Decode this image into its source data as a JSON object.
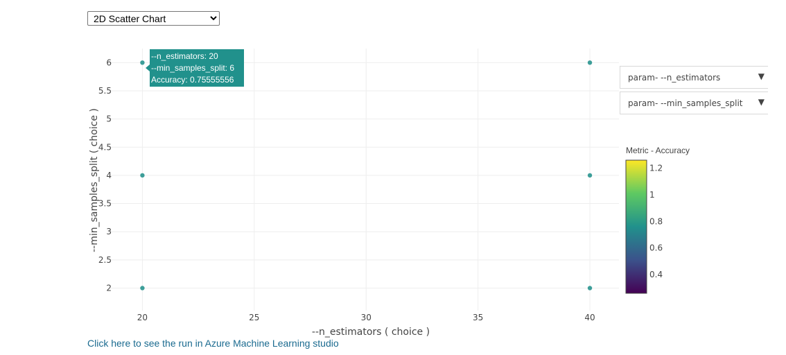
{
  "chart_type_select": {
    "selected": "2D Scatter Chart",
    "options": [
      "2D Scatter Chart"
    ]
  },
  "dropdowns": {
    "x_param": "param- --n_estimators",
    "y_param": "param- --min_samples_split"
  },
  "link_text": "Click here to see the run in Azure Machine Learning studio",
  "tooltip": {
    "line1": "--n_estimators: 20",
    "line2": "--min_samples_split: 6",
    "line3": "Accuracy: 0.75555556"
  },
  "colorbar": {
    "title": "Metric - Accuracy",
    "ticks": [
      0.4,
      0.6,
      0.8,
      1,
      1.2
    ],
    "tick_labels": [
      "0.4",
      "0.6",
      "0.8",
      "1",
      "1.2"
    ],
    "range": [
      0.26,
      1.26
    ],
    "colorscale": [
      "#440154",
      "#3b528b",
      "#21918c",
      "#5ec962",
      "#fde725"
    ]
  },
  "colors": {
    "marker": "#3d9e99",
    "tooltip_bg": "#21918c",
    "grid": "#eeeeee"
  },
  "chart_data": {
    "type": "scatter",
    "xlabel": "--n_estimators ( choice )",
    "ylabel": "--min_samples_split ( choice )",
    "xlim": [
      18.5,
      41.3
    ],
    "ylim": [
      1.6,
      6.25
    ],
    "xticks": [
      20,
      25,
      30,
      35,
      40
    ],
    "xtick_labels": [
      "20",
      "25",
      "30",
      "35",
      "40"
    ],
    "yticks": [
      2,
      2.5,
      3,
      3.5,
      4,
      4.5,
      5,
      5.5,
      6
    ],
    "ytick_labels": [
      "2",
      "2.5",
      "3",
      "3.5",
      "4",
      "4.5",
      "5",
      "5.5",
      "6"
    ],
    "grid": true,
    "legend": "colorbar-right",
    "points": [
      {
        "x": 20,
        "y": 6,
        "accuracy": 0.75555556
      },
      {
        "x": 20,
        "y": 4,
        "accuracy": 0.75555556
      },
      {
        "x": 20,
        "y": 2,
        "accuracy": 0.75555556
      },
      {
        "x": 40,
        "y": 6,
        "accuracy": 0.75555556
      },
      {
        "x": 40,
        "y": 4,
        "accuracy": 0.75555556
      },
      {
        "x": 40,
        "y": 2,
        "accuracy": 0.75555556
      }
    ]
  }
}
